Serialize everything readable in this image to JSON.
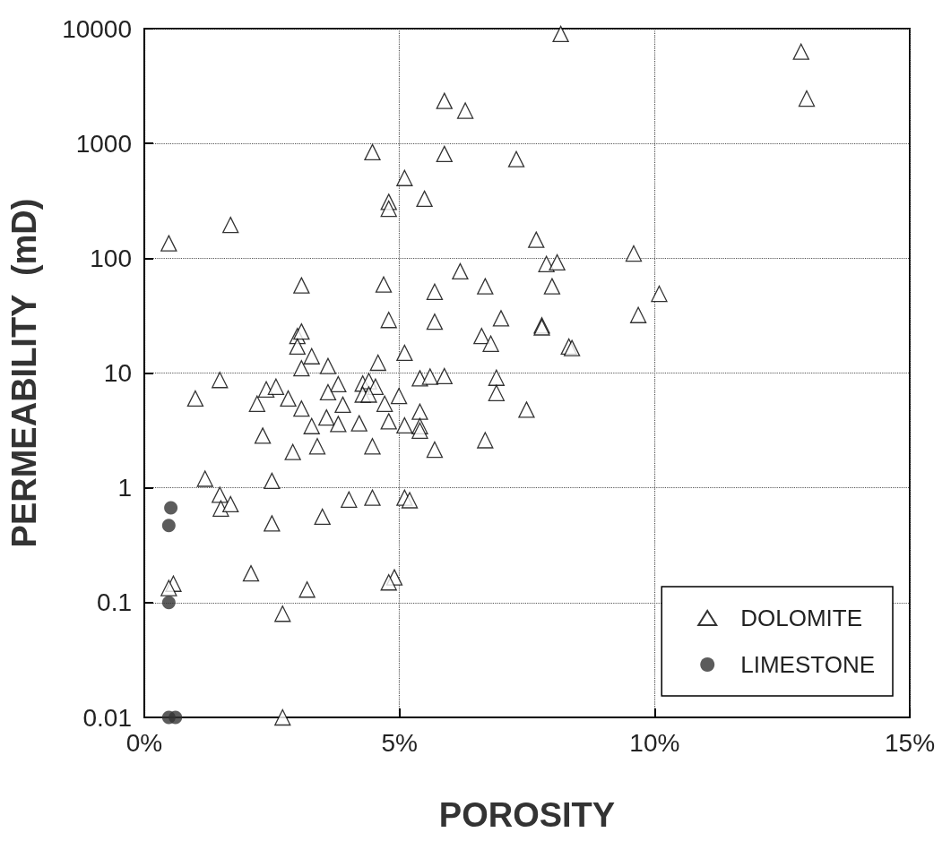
{
  "chart_data": {
    "type": "scatter",
    "xlabel": "POROSITY",
    "ylabel": "PERMEABILITY  (mD)",
    "xlim": [
      0,
      15
    ],
    "xticks": [
      {
        "value": 0,
        "label": "0%"
      },
      {
        "value": 5,
        "label": "5%"
      },
      {
        "value": 10,
        "label": "10%"
      },
      {
        "value": 15,
        "label": "15%"
      }
    ],
    "ylim": [
      0.01,
      10000
    ],
    "yticks": [
      0.01,
      0.1,
      1,
      10,
      100,
      1000,
      10000
    ],
    "log": "y",
    "grid": true,
    "legend": "bottom right",
    "series": [
      {
        "name": "DOLOMITE",
        "color": "#000000",
        "marker": "triangle",
        "x": [
          0.48,
          1.69,
          8.16,
          12.87,
          12.98,
          5.88,
          6.29,
          5.88,
          4.47,
          7.29,
          5.1,
          5.49,
          4.79,
          4.79,
          7.68,
          9.59,
          7.88,
          8.09,
          6.19,
          10.09,
          3.08,
          4.69,
          5.69,
          6.68,
          7.99,
          9.68,
          6.99,
          4.79,
          5.69,
          7.79,
          7.79,
          6.61,
          6.79,
          3.0,
          3.08,
          3.0,
          8.32,
          8.38,
          3.28,
          5.1,
          4.58,
          3.08,
          3.6,
          5.4,
          5.6,
          5.88,
          6.9,
          1.48,
          4.28,
          4.4,
          4.53,
          3.8,
          1.0,
          2.39,
          2.58,
          2.82,
          4.28,
          4.4,
          4.99,
          6.9,
          2.21,
          3.08,
          3.89,
          4.71,
          3.6,
          5.4,
          7.49,
          3.57,
          3.8,
          3.28,
          4.21,
          4.79,
          5.1,
          5.4,
          5.4,
          2.32,
          3.39,
          2.91,
          4.47,
          5.69,
          6.68,
          1.19,
          2.5,
          1.48,
          1.5,
          1.69,
          4.01,
          4.47,
          5.1,
          5.2,
          3.49,
          2.5,
          2.09,
          3.19,
          4.9,
          4.79,
          0.57,
          0.48,
          2.71,
          2.71
        ],
        "values": [
          135,
          195,
          9000,
          6300,
          2460,
          2350,
          1930,
          810,
          840,
          730,
          500,
          330,
          310,
          270,
          145,
          110,
          89,
          92,
          77,
          49,
          58,
          59,
          51,
          57,
          57,
          32,
          30,
          29,
          28,
          26,
          25,
          21,
          18,
          21,
          23,
          17,
          17,
          16.5,
          14,
          15,
          12.3,
          11,
          11.5,
          9,
          9.3,
          9.4,
          9.1,
          8.7,
          8.1,
          8.5,
          7.6,
          8,
          6,
          7.2,
          7.6,
          6,
          6.5,
          6.5,
          6.3,
          6.7,
          5.4,
          4.9,
          5.3,
          5.4,
          6.8,
          4.6,
          4.8,
          4.1,
          3.6,
          3.45,
          3.65,
          3.8,
          3.5,
          3.45,
          3.15,
          2.85,
          2.3,
          2.05,
          2.3,
          2.15,
          2.6,
          1.2,
          1.15,
          0.87,
          0.66,
          0.72,
          0.79,
          0.82,
          0.82,
          0.78,
          0.56,
          0.49,
          0.18,
          0.13,
          0.166,
          0.15,
          0.146,
          0.134,
          0.08,
          0.01
        ]
      },
      {
        "name": "LIMESTONE",
        "color": "#333333",
        "marker": "circle",
        "x": [
          0.52,
          0.48,
          0.48,
          0.48,
          0.61
        ],
        "values": [
          0.67,
          0.47,
          0.1,
          0.01,
          0.01
        ]
      }
    ]
  }
}
